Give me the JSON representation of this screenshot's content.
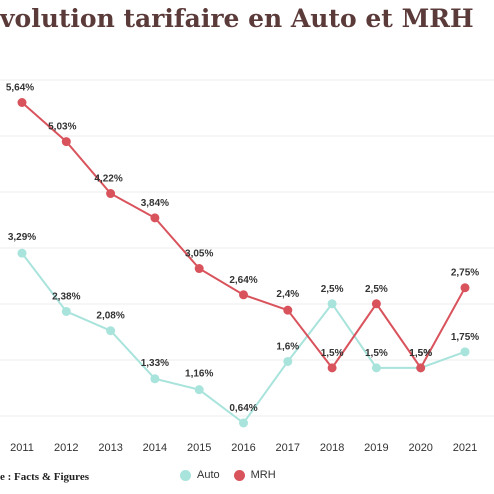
{
  "title": "volution tarifaire en Auto et MRH",
  "source": "e : Facts & Figures",
  "chart_data": {
    "type": "line",
    "x": [
      "2011",
      "2012",
      "2013",
      "2014",
      "2015",
      "2016",
      "2017",
      "2018",
      "2019",
      "2020",
      "2021"
    ],
    "series": [
      {
        "name": "Auto",
        "color": "#a8e3dc",
        "values": [
          3.29,
          2.38,
          2.08,
          1.33,
          1.16,
          0.64,
          1.6,
          2.5,
          1.5,
          1.5,
          1.75
        ],
        "labels": [
          "3,29%",
          "2,38%",
          "2,08%",
          "1,33%",
          "1,16%",
          "0,64%",
          "1,6%",
          "2,5%",
          "1,5%",
          "1,5%",
          "1,75%"
        ]
      },
      {
        "name": "MRH",
        "color": "#d9535c",
        "values": [
          5.64,
          5.03,
          4.22,
          3.84,
          3.05,
          2.64,
          2.4,
          1.5,
          2.5,
          1.5,
          2.75
        ],
        "labels": [
          "5,64%",
          "5,03%",
          "4,22%",
          "3,84%",
          "3,05%",
          "2,64%",
          "2,4%",
          "1,5%",
          "2,5%",
          "1,5%",
          "2,75%"
        ]
      }
    ],
    "grid": true,
    "legend_position": "bottom"
  }
}
